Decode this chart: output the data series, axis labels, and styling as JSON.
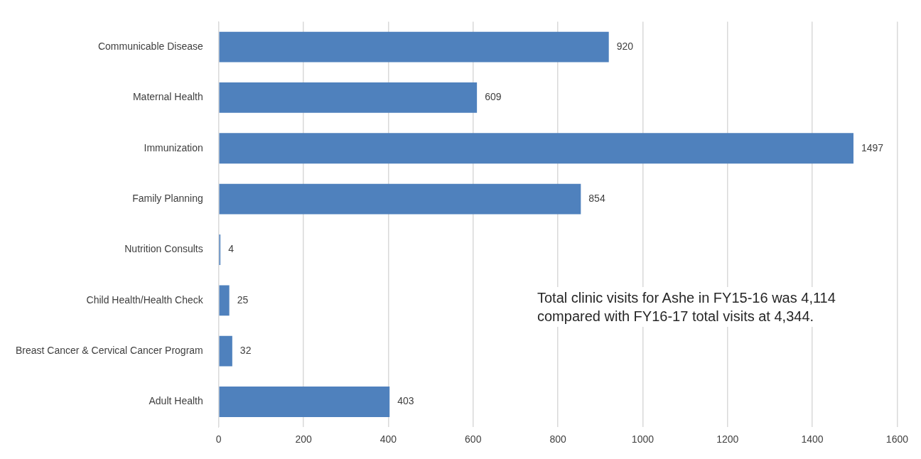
{
  "chart_data": {
    "type": "bar",
    "orientation": "horizontal",
    "categories": [
      "Communicable Disease",
      "Maternal Health",
      "Immunization",
      "Family Planning",
      "Nutrition Consults",
      "Child Health/Health Check",
      "Breast Cancer & Cervical Cancer Program",
      "Adult Health"
    ],
    "values": [
      920,
      609,
      1497,
      854,
      4,
      25,
      32,
      403
    ],
    "color": "#4f81bd",
    "xlim": [
      0,
      1600
    ],
    "xticks": [
      0,
      200,
      400,
      600,
      800,
      1000,
      1200,
      1400,
      1600
    ],
    "grid": "x",
    "legend": false,
    "data_labels": true,
    "annotations": [
      "Total clinic visits for Ashe in FY15-16 was 4,114 compared with FY16-17 total visits at 4,344."
    ]
  }
}
